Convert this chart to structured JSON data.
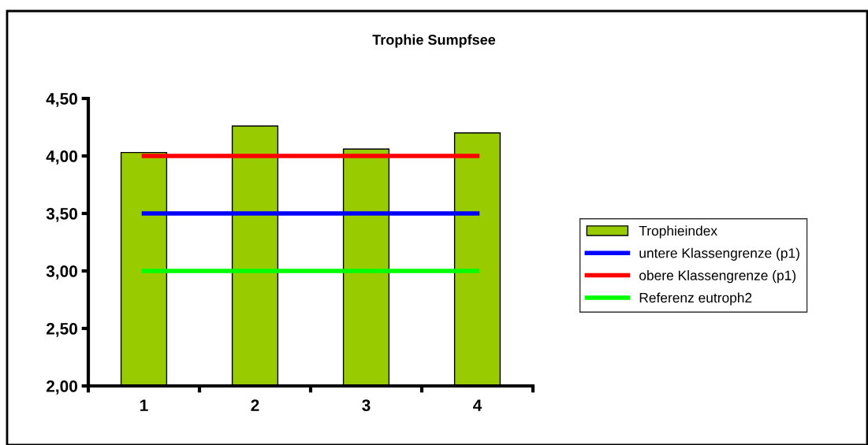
{
  "chart_data": {
    "type": "bar",
    "title": "Trophie Sumpfsee",
    "categories": [
      "1",
      "2",
      "3",
      "4"
    ],
    "series": [
      {
        "name": "Trophieindex",
        "color": "#99cc00",
        "values": [
          4.03,
          4.26,
          4.06,
          4.2
        ]
      },
      {
        "name": "untere Klassengrenze (p1)",
        "type": "line",
        "color": "#0000ff",
        "values": [
          3.5,
          3.5,
          3.5,
          3.5
        ]
      },
      {
        "name": "obere Klassengrenze (p1)",
        "type": "line",
        "color": "#ff0000",
        "values": [
          4.0,
          4.0,
          4.0,
          4.0
        ]
      },
      {
        "name": "Referenz eutroph2",
        "type": "line",
        "color": "#00ff00",
        "values": [
          3.0,
          3.0,
          3.0,
          3.0
        ]
      }
    ],
    "ylim": [
      2.0,
      4.5
    ],
    "yticks": [
      {
        "value": 2.0,
        "label": "2,00"
      },
      {
        "value": 2.5,
        "label": "2,50"
      },
      {
        "value": 3.0,
        "label": "3,00"
      },
      {
        "value": 3.5,
        "label": "3,50"
      },
      {
        "value": 4.0,
        "label": "4,00"
      },
      {
        "value": 4.5,
        "label": "4,50"
      }
    ],
    "grid": false,
    "legend": "right",
    "marker": "none",
    "line_style": "solid"
  }
}
